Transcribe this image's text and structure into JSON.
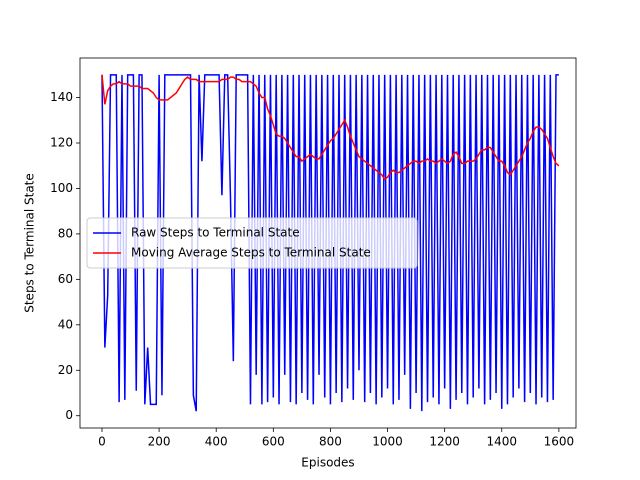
{
  "chart_data": {
    "type": "line",
    "xlabel": "Episodes",
    "ylabel": "Steps to Terminal State",
    "x": [
      0,
      10,
      20,
      30,
      40,
      50,
      60,
      70,
      80,
      90,
      100,
      110,
      120,
      130,
      140,
      150,
      160,
      170,
      180,
      190,
      200,
      210,
      220,
      230,
      240,
      250,
      260,
      270,
      280,
      290,
      300,
      310,
      320,
      330,
      340,
      350,
      360,
      370,
      380,
      390,
      400,
      410,
      420,
      430,
      440,
      450,
      460,
      470,
      480,
      490,
      500,
      510,
      520,
      530,
      540,
      550,
      560,
      570,
      580,
      590,
      600,
      610,
      620,
      630,
      640,
      650,
      660,
      670,
      680,
      690,
      700,
      710,
      720,
      730,
      740,
      750,
      760,
      770,
      780,
      790,
      800,
      810,
      820,
      830,
      840,
      850,
      860,
      870,
      880,
      890,
      900,
      910,
      920,
      930,
      940,
      950,
      960,
      970,
      980,
      990,
      1000,
      1010,
      1020,
      1030,
      1040,
      1050,
      1060,
      1070,
      1080,
      1090,
      1100,
      1110,
      1120,
      1130,
      1140,
      1150,
      1160,
      1170,
      1180,
      1190,
      1200,
      1210,
      1220,
      1230,
      1240,
      1250,
      1260,
      1270,
      1280,
      1290,
      1300,
      1310,
      1320,
      1330,
      1340,
      1350,
      1360,
      1370,
      1380,
      1390,
      1400,
      1410,
      1420,
      1430,
      1440,
      1450,
      1460,
      1470,
      1480,
      1490,
      1500,
      1510,
      1520,
      1530,
      1540,
      1550,
      1560,
      1570,
      1580,
      1590,
      1600
    ],
    "series": [
      {
        "name": "Raw Steps to Terminal State",
        "color": "#0000ff",
        "values": [
          150,
          30,
          53,
          150,
          150,
          150,
          6,
          150,
          7,
          150,
          150,
          150,
          11,
          150,
          150,
          5,
          30,
          5,
          5,
          5,
          150,
          9,
          150,
          150,
          150,
          150,
          150,
          150,
          150,
          150,
          150,
          150,
          9,
          2,
          150,
          112,
          150,
          150,
          150,
          150,
          150,
          150,
          97,
          150,
          150,
          96,
          24,
          150,
          150,
          150,
          150,
          150,
          5,
          150,
          18,
          150,
          5,
          150,
          6,
          150,
          8,
          150,
          5,
          150,
          18,
          150,
          6,
          150,
          5,
          150,
          10,
          150,
          7,
          150,
          5,
          150,
          18,
          150,
          8,
          150,
          5,
          150,
          10,
          150,
          6,
          150,
          12,
          150,
          7,
          150,
          20,
          150,
          6,
          150,
          10,
          150,
          5,
          150,
          8,
          150,
          12,
          150,
          5,
          150,
          7,
          150,
          18,
          150,
          3,
          150,
          10,
          150,
          2,
          150,
          6,
          150,
          8,
          150,
          5,
          150,
          12,
          150,
          3,
          150,
          7,
          150,
          10,
          150,
          5,
          150,
          8,
          150,
          12,
          150,
          5,
          150,
          7,
          150,
          10,
          150,
          3,
          150,
          5,
          150,
          8,
          150,
          12,
          150,
          6,
          150,
          10,
          150,
          5,
          150,
          8,
          150,
          6,
          150,
          7,
          150,
          150
        ]
      },
      {
        "name": "Moving Average Steps to Terminal State",
        "color": "#ff0000",
        "values": [
          150,
          137,
          143,
          145,
          146,
          146,
          147,
          146,
          146,
          146,
          145,
          145,
          145,
          145,
          144,
          144,
          144,
          143,
          142,
          140,
          139,
          139,
          139,
          139,
          140,
          141,
          142,
          144,
          146,
          148,
          149,
          148,
          148,
          148,
          147,
          147,
          147,
          147,
          147,
          147,
          147,
          147,
          148,
          148,
          148,
          149,
          149,
          148,
          148,
          147,
          147,
          147,
          147,
          146,
          145,
          142,
          140,
          140,
          135,
          132,
          128,
          124,
          123,
          123,
          122,
          120,
          118,
          116,
          114,
          114,
          112,
          113,
          114,
          115,
          114,
          113,
          113,
          115,
          117,
          119,
          121,
          122,
          124,
          126,
          128,
          130,
          127,
          123,
          120,
          117,
          114,
          113,
          112,
          111,
          110,
          109,
          108,
          107,
          106,
          104,
          105,
          107,
          108,
          107,
          107,
          108,
          109,
          110,
          111,
          112,
          112,
          111,
          112,
          112,
          113,
          112,
          112,
          111,
          112,
          113,
          112,
          111,
          112,
          115,
          116,
          114,
          111,
          111,
          112,
          112,
          112,
          113,
          115,
          117,
          117,
          118,
          118,
          116,
          114,
          112,
          112,
          110,
          107,
          106,
          108,
          110,
          112,
          114,
          117,
          120,
          122,
          125,
          127,
          127,
          126,
          124,
          122,
          118,
          114,
          111,
          110
        ]
      }
    ],
    "xlim": [
      -77,
      1660
    ],
    "ylim": [
      -5.4,
      157.4
    ],
    "xticks": [
      0,
      200,
      400,
      600,
      800,
      1000,
      1200,
      1400,
      1600
    ],
    "yticks": [
      0,
      20,
      40,
      60,
      80,
      100,
      120,
      140
    ],
    "legend": "center left"
  }
}
